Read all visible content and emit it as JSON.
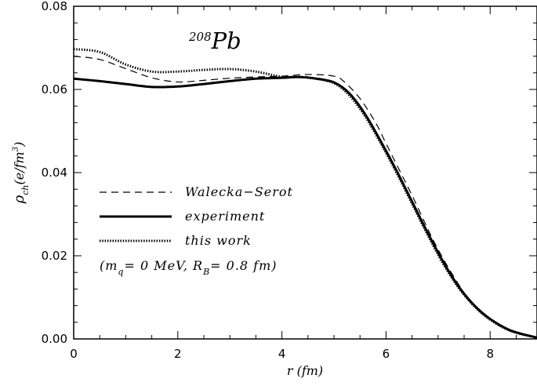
{
  "chart_data": {
    "type": "line",
    "title": "",
    "annotation": {
      "superscript": "208",
      "text": "Pb"
    },
    "xlabel": "r (fm)",
    "ylabel": {
      "main": "ρ",
      "sub": "ch",
      "rest": "(e/fm",
      "sup": "3",
      "close": ")"
    },
    "xlim": [
      0,
      8.9
    ],
    "ylim": [
      0,
      0.08
    ],
    "xticks": [
      0,
      2,
      4,
      6,
      8
    ],
    "xtick_labels": [
      "0",
      "2",
      "4",
      "6",
      "8"
    ],
    "yticks": [
      0.0,
      0.02,
      0.04,
      0.06,
      0.08
    ],
    "ytick_labels": [
      "0.00",
      "0.02",
      "0.04",
      "0.06",
      "0.08"
    ],
    "grid": false,
    "legend_position": "center-left",
    "series": [
      {
        "name": "Walecka−Serot",
        "style": "dashed",
        "x": [
          0,
          0.5,
          1.0,
          1.5,
          2.0,
          2.5,
          3.0,
          3.5,
          4.0,
          4.5,
          5.0,
          5.2,
          5.5,
          5.8,
          6.0,
          6.2,
          6.5,
          6.8,
          7.0,
          7.3,
          7.6,
          8.0,
          8.4,
          8.9
        ],
        "values": [
          0.068,
          0.0672,
          0.065,
          0.0628,
          0.0618,
          0.0622,
          0.0627,
          0.063,
          0.0632,
          0.0636,
          0.0632,
          0.0618,
          0.0578,
          0.052,
          0.047,
          0.042,
          0.0345,
          0.0265,
          0.0215,
          0.015,
          0.0095,
          0.0048,
          0.0018,
          0.0002
        ]
      },
      {
        "name": "experiment",
        "style": "solid",
        "x": [
          0,
          0.5,
          1.0,
          1.5,
          2.0,
          2.5,
          3.0,
          3.5,
          4.0,
          4.3,
          4.6,
          5.0,
          5.3,
          5.6,
          5.9,
          6.2,
          6.5,
          6.8,
          7.1,
          7.4,
          7.7,
          8.0,
          8.4,
          8.9
        ],
        "values": [
          0.0626,
          0.062,
          0.0613,
          0.0606,
          0.0607,
          0.0613,
          0.062,
          0.0626,
          0.0628,
          0.063,
          0.0627,
          0.0617,
          0.059,
          0.054,
          0.0475,
          0.0405,
          0.033,
          0.0255,
          0.0185,
          0.0125,
          0.008,
          0.0048,
          0.002,
          0.0003
        ]
      },
      {
        "name": "this work",
        "style": "dotted",
        "x": [
          0,
          0.5,
          1.0,
          1.5,
          2.0,
          2.5,
          3.0,
          3.5,
          4.0,
          4.3,
          4.6,
          5.0,
          5.3,
          5.6,
          5.9,
          6.2,
          6.5,
          6.8,
          7.1,
          7.4,
          7.7,
          8.0,
          8.4,
          8.9
        ],
        "values": [
          0.0697,
          0.069,
          0.066,
          0.0643,
          0.0643,
          0.0647,
          0.0649,
          0.0643,
          0.063,
          0.063,
          0.0627,
          0.0615,
          0.0585,
          0.0535,
          0.047,
          0.04,
          0.0325,
          0.025,
          0.018,
          0.0122,
          0.0078,
          0.0046,
          0.0019,
          0.0003
        ]
      }
    ],
    "parameters_note": {
      "open": "(m",
      "m_sub": "q",
      "m_value": "= 0 MeV, R",
      "r_sub": "B",
      "r_value": "= 0.8 fm)"
    }
  }
}
